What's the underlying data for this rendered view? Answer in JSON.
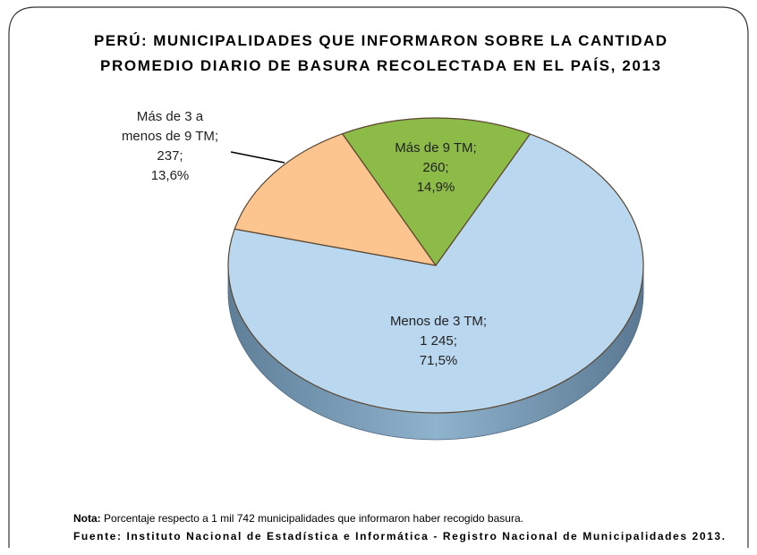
{
  "chart_data": {
    "type": "pie",
    "title": [
      "PERÚ: MUNICIPALIDADES QUE INFORMARON SOBRE LA CANTIDAD",
      "PROMEDIO DIARIO DE BASURA RECOLECTADA EN EL PAÍS, 2013"
    ],
    "categories": [
      "Menos de 3 TM",
      "Más de 3 a menos de 9 TM",
      "Más de 9 TM"
    ],
    "values": [
      1245,
      237,
      260
    ],
    "value_labels": [
      "1 245",
      "237",
      "260"
    ],
    "percentages": [
      71.5,
      13.6,
      14.9
    ],
    "percentage_labels": [
      "71,5%",
      "13,6%",
      "14,9%"
    ],
    "separator": ";",
    "colors": [
      "#b9d7ef",
      "#fcc58f",
      "#8dbb48"
    ],
    "note": {
      "label": "Nota:",
      "text": "Porcentaje respecto a 1 mil 742 municipalidades que informaron haber recogido basura."
    },
    "source": "Fuente: Instituto Nacional de Estadística e Informática - Registro Nacional de  Municipalidades 2013."
  }
}
